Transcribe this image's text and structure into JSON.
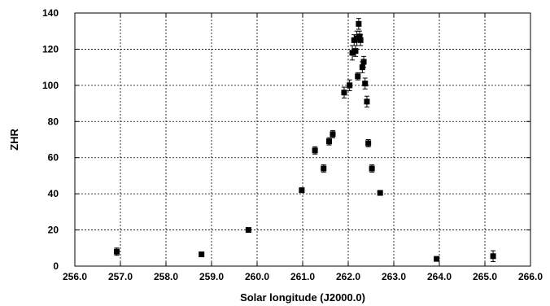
{
  "chart_data": {
    "type": "scatter",
    "title": "",
    "xlabel": "Solar longitude (J2000.0)",
    "ylabel": "ZHR",
    "xlim": [
      256.0,
      266.0
    ],
    "ylim": [
      0,
      140
    ],
    "xticks": [
      "256.0",
      "257.0",
      "258.0",
      "259.0",
      "260.0",
      "261.0",
      "262.0",
      "263.0",
      "264.0",
      "265.0",
      "266.0"
    ],
    "yticks": [
      "0",
      "20",
      "40",
      "60",
      "80",
      "100",
      "120",
      "140"
    ],
    "grid": true,
    "marker_color": "#000000",
    "points": [
      {
        "x": 256.92,
        "y": 8,
        "err": 2
      },
      {
        "x": 258.78,
        "y": 6.5,
        "err": 1
      },
      {
        "x": 259.81,
        "y": 20,
        "err": 1
      },
      {
        "x": 260.98,
        "y": 42,
        "err": 1
      },
      {
        "x": 261.27,
        "y": 64,
        "err": 2
      },
      {
        "x": 261.46,
        "y": 54,
        "err": 2
      },
      {
        "x": 261.58,
        "y": 69,
        "err": 2
      },
      {
        "x": 261.66,
        "y": 73,
        "err": 2
      },
      {
        "x": 261.91,
        "y": 96,
        "err": 3
      },
      {
        "x": 262.03,
        "y": 100,
        "err": 3
      },
      {
        "x": 262.09,
        "y": 118,
        "err": 4
      },
      {
        "x": 262.13,
        "y": 125,
        "err": 3
      },
      {
        "x": 262.16,
        "y": 119,
        "err": 3
      },
      {
        "x": 262.19,
        "y": 126,
        "err": 4
      },
      {
        "x": 262.21,
        "y": 105,
        "err": 2
      },
      {
        "x": 262.23,
        "y": 134,
        "err": 3
      },
      {
        "x": 262.25,
        "y": 127,
        "err": 3
      },
      {
        "x": 262.27,
        "y": 125,
        "err": 3
      },
      {
        "x": 262.31,
        "y": 110,
        "err": 3
      },
      {
        "x": 262.34,
        "y": 113,
        "err": 3
      },
      {
        "x": 262.37,
        "y": 101,
        "err": 3
      },
      {
        "x": 262.41,
        "y": 91,
        "err": 3
      },
      {
        "x": 262.44,
        "y": 68,
        "err": 2
      },
      {
        "x": 262.52,
        "y": 54,
        "err": 2
      },
      {
        "x": 262.7,
        "y": 40.5,
        "err": 1
      },
      {
        "x": 263.94,
        "y": 4,
        "err": 1
      },
      {
        "x": 265.18,
        "y": 5.5,
        "err": 3
      }
    ]
  }
}
